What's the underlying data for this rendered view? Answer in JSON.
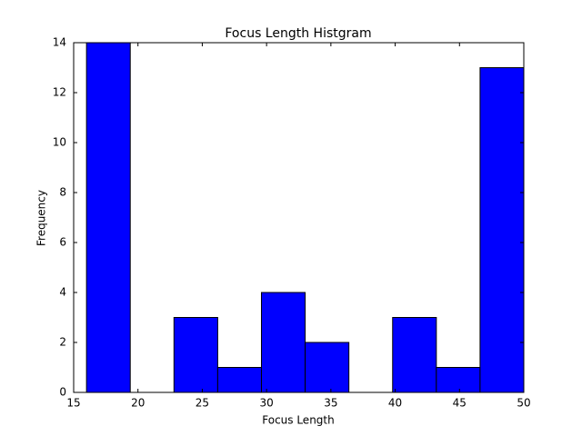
{
  "chart_data": {
    "type": "histogram",
    "title": "Focus Length Histgram",
    "x_label": "Focus Length",
    "y_label": "Frequency",
    "bins": [
      16,
      19.4,
      22.8,
      26.2,
      29.6,
      33,
      36.4,
      39.8,
      43.2,
      46.6,
      50
    ],
    "values": [
      14,
      0,
      3,
      1,
      4,
      2,
      0,
      3,
      1,
      13
    ],
    "color": "#0000ff",
    "xlim": [
      15,
      50
    ],
    "xticks": [
      15,
      20,
      25,
      30,
      35,
      40,
      45,
      50
    ],
    "ylim": [
      0,
      14
    ],
    "yticks": [
      0,
      2,
      4,
      6,
      8,
      10,
      12,
      14
    ]
  }
}
